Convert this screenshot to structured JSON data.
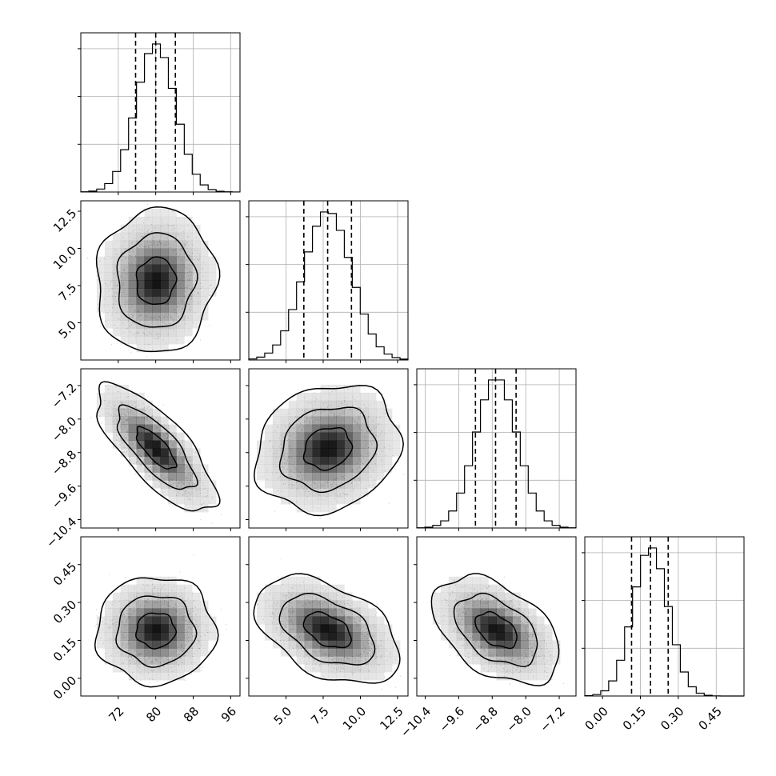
{
  "chart_data": {
    "type": "corner",
    "parameters": [
      {
        "mean": 80.0,
        "sd": 4.2,
        "range": [
          64.0,
          98.0
        ],
        "ticks": [
          72,
          80,
          88,
          96
        ],
        "tick_labels": [
          "72",
          "80",
          "88",
          "96"
        ],
        "quantiles": [
          75.7,
          80.0,
          84.2
        ]
      },
      {
        "mean": 7.8,
        "sd": 1.6,
        "range": [
          2.5,
          13.2
        ],
        "ticks": [
          5.0,
          7.5,
          10.0,
          12.5
        ],
        "tick_labels": [
          "5.0",
          "7.5",
          "10.0",
          "12.5"
        ],
        "quantiles": [
          6.2,
          7.8,
          9.4
        ]
      },
      {
        "mean": -8.7,
        "sd": 0.5,
        "range": [
          -10.6,
          -6.8
        ],
        "ticks": [
          -10.4,
          -9.6,
          -8.8,
          -8.0,
          -7.2
        ],
        "tick_labels": [
          "−10.4",
          "−9.6",
          "−8.8",
          "−8.0",
          "−7.2"
        ],
        "quantiles": [
          -9.2,
          -8.72,
          -8.23
        ]
      },
      {
        "mean": 0.19,
        "sd": 0.07,
        "range": [
          -0.07,
          0.56
        ],
        "ticks": [
          0.0,
          0.15,
          0.3,
          0.45
        ],
        "tick_labels": [
          "0.00",
          "0.15",
          "0.30",
          "0.45"
        ],
        "quantiles": [
          0.115,
          0.19,
          0.26
        ]
      }
    ],
    "correlations": [
      {
        "pair": [
          0,
          1
        ],
        "rho": 0.05
      },
      {
        "pair": [
          0,
          2
        ],
        "rho": -0.75
      },
      {
        "pair": [
          1,
          2
        ],
        "rho": 0.15
      },
      {
        "pair": [
          0,
          3
        ],
        "rho": 0.0
      },
      {
        "pair": [
          1,
          3
        ],
        "rho": -0.45
      },
      {
        "pair": [
          2,
          3
        ],
        "rho": -0.45
      }
    ],
    "histogram_bins": 20,
    "contour_levels": [
      0.39,
      0.86,
      0.99
    ],
    "grid": true,
    "colors": {
      "line": "#000000",
      "grid": "#b0b0b0",
      "points": "#c8c8c8",
      "density": "#000000"
    }
  }
}
